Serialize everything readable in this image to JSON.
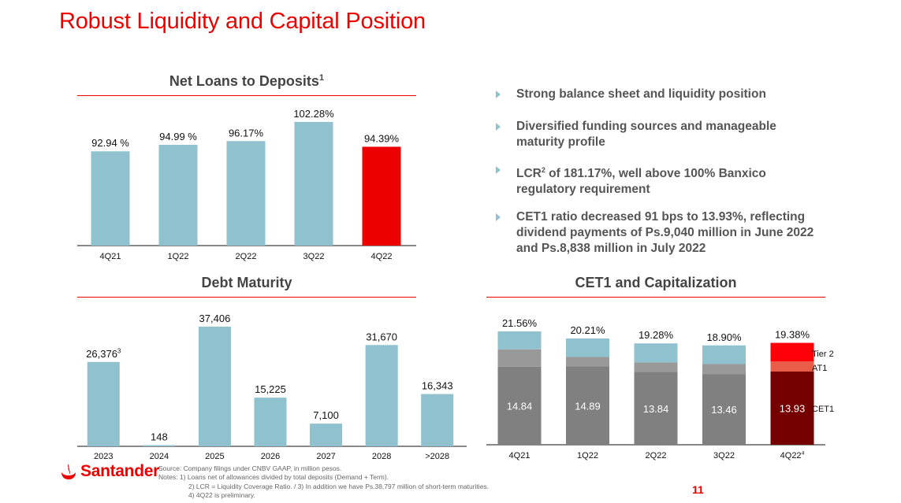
{
  "page": {
    "title": "Robust Liquidity and Capital Position",
    "page_number": "11",
    "brand": "Santander",
    "brand_color": "#ec0000"
  },
  "bullets": [
    {
      "text": "Strong balance sheet and liquidity position"
    },
    {
      "text": "Diversified funding sources and manageable maturity profile"
    },
    {
      "pre": "LCR",
      "sup": "2",
      "post": " of 181.17%, well above 100% Banxico regulatory requirement"
    },
    {
      "text": "CET1 ratio decreased 91 bps to 13.93%, reflecting dividend payments of Ps.9,040 million in June 2022 and Ps.8,838 million in July 2022"
    }
  ],
  "footer": {
    "source": "Source: Company filings under CNBV GAAP, in million pesos.",
    "note1": "Notes:  1) Loans net of allowances divided by total deposits (Demand + Term).",
    "note2": "2) LCR = Liquidity Coverage Ratio.  /   3) In addition we have Ps.38,797 million of short-term maturities.",
    "note3": "4) 4Q22 is preliminary."
  },
  "colors": {
    "bar_blue": "#8fc1cf",
    "highlight_red": "#ec0000",
    "cet1_gray": "#808080",
    "at1_gray": "#999999",
    "cet1_dark_red": "#750000",
    "at1_light_red": "#e85c48",
    "tier2_red": "#fd0008"
  },
  "chart_data": [
    {
      "id": "net-loans",
      "type": "bar",
      "title": "Net Loans to Deposits",
      "title_sup": "1",
      "categories": [
        "4Q21",
        "1Q22",
        "2Q22",
        "3Q22",
        "4Q22"
      ],
      "values": [
        92.94,
        94.99,
        96.17,
        102.28,
        94.39
      ],
      "labels": [
        "92.94 %",
        "94.99 %",
        "96.17%",
        "102.28%",
        "94.39%"
      ],
      "highlight_index": 4,
      "unit": "%",
      "ylim": [
        63,
        103
      ],
      "xlabel": "",
      "ylabel": "",
      "grid": false
    },
    {
      "id": "debt-maturity",
      "type": "bar",
      "title": "Debt Maturity",
      "categories": [
        "2023",
        "2024",
        "2025",
        "2026",
        "2027",
        "2028",
        ">2028"
      ],
      "values": [
        26376,
        148,
        37406,
        15225,
        7100,
        31670,
        16343
      ],
      "labels": [
        "26,376",
        "148",
        "37,406",
        "15,225",
        "7,100",
        "31,670",
        "16,343"
      ],
      "label_sups": [
        "3",
        "",
        "",
        "",
        "",
        "",
        ""
      ],
      "unit": "million pesos",
      "ylim": [
        0,
        37406
      ],
      "xlabel": "",
      "ylabel": "",
      "grid": false
    },
    {
      "id": "cet1",
      "type": "bar",
      "stacked": true,
      "title": "CET1 and Capitalization",
      "categories": [
        "4Q21",
        "1Q22",
        "2Q22",
        "3Q22",
        "4Q22"
      ],
      "category_sups": [
        "",
        "",
        "",
        "",
        "4"
      ],
      "series": [
        {
          "name": "CET1",
          "values": [
            14.84,
            14.89,
            13.84,
            13.46,
            13.93
          ]
        },
        {
          "name": "AT1",
          "values": [
            3.31,
            1.81,
            1.8,
            1.9,
            1.9
          ]
        },
        {
          "name": "Tier 2",
          "values": [
            3.41,
            3.51,
            3.64,
            3.54,
            3.55
          ]
        }
      ],
      "totals": [
        21.56,
        20.21,
        19.28,
        18.9,
        19.38
      ],
      "total_labels": [
        "21.56%",
        "20.21%",
        "19.28%",
        "18.90%",
        "19.38%"
      ],
      "cet1_labels": [
        "14.84",
        "14.89",
        "13.84",
        "13.46",
        "13.93"
      ],
      "highlight_index": 4,
      "legend": [
        "Tier 2",
        "AT1",
        "CET1"
      ],
      "legend_position": "right",
      "ylim": [
        0,
        21.56
      ],
      "xlabel": "",
      "ylabel": "",
      "grid": false
    }
  ]
}
